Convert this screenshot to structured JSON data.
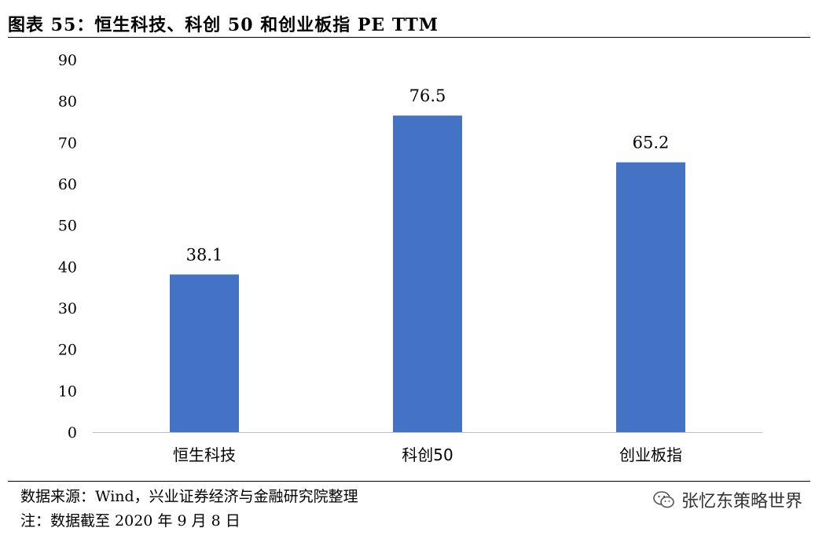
{
  "title": "图表 55：恒生科技、科创 50 和创业板指 PE TTM",
  "notes": {
    "source": "数据来源：Wind，兴业证券经济与金融研究院整理",
    "date": "注：数据截至 2020 年 9 月 8 日"
  },
  "watermark": {
    "icon": "wechat-icon",
    "text": "张忆东策略世界"
  },
  "chart_data": {
    "type": "bar",
    "categories": [
      "恒生科技",
      "科创50",
      "创业板指"
    ],
    "values": [
      38.1,
      76.5,
      65.2
    ],
    "data_labels": [
      "38.1",
      "76.5",
      "65.2"
    ],
    "ylim": [
      0,
      90
    ],
    "yticks": [
      0,
      10,
      20,
      30,
      40,
      50,
      60,
      70,
      80,
      90
    ],
    "grid": false,
    "legend": "none",
    "bar_color": "#4472C4",
    "axis_color": "#BFBFBF"
  }
}
